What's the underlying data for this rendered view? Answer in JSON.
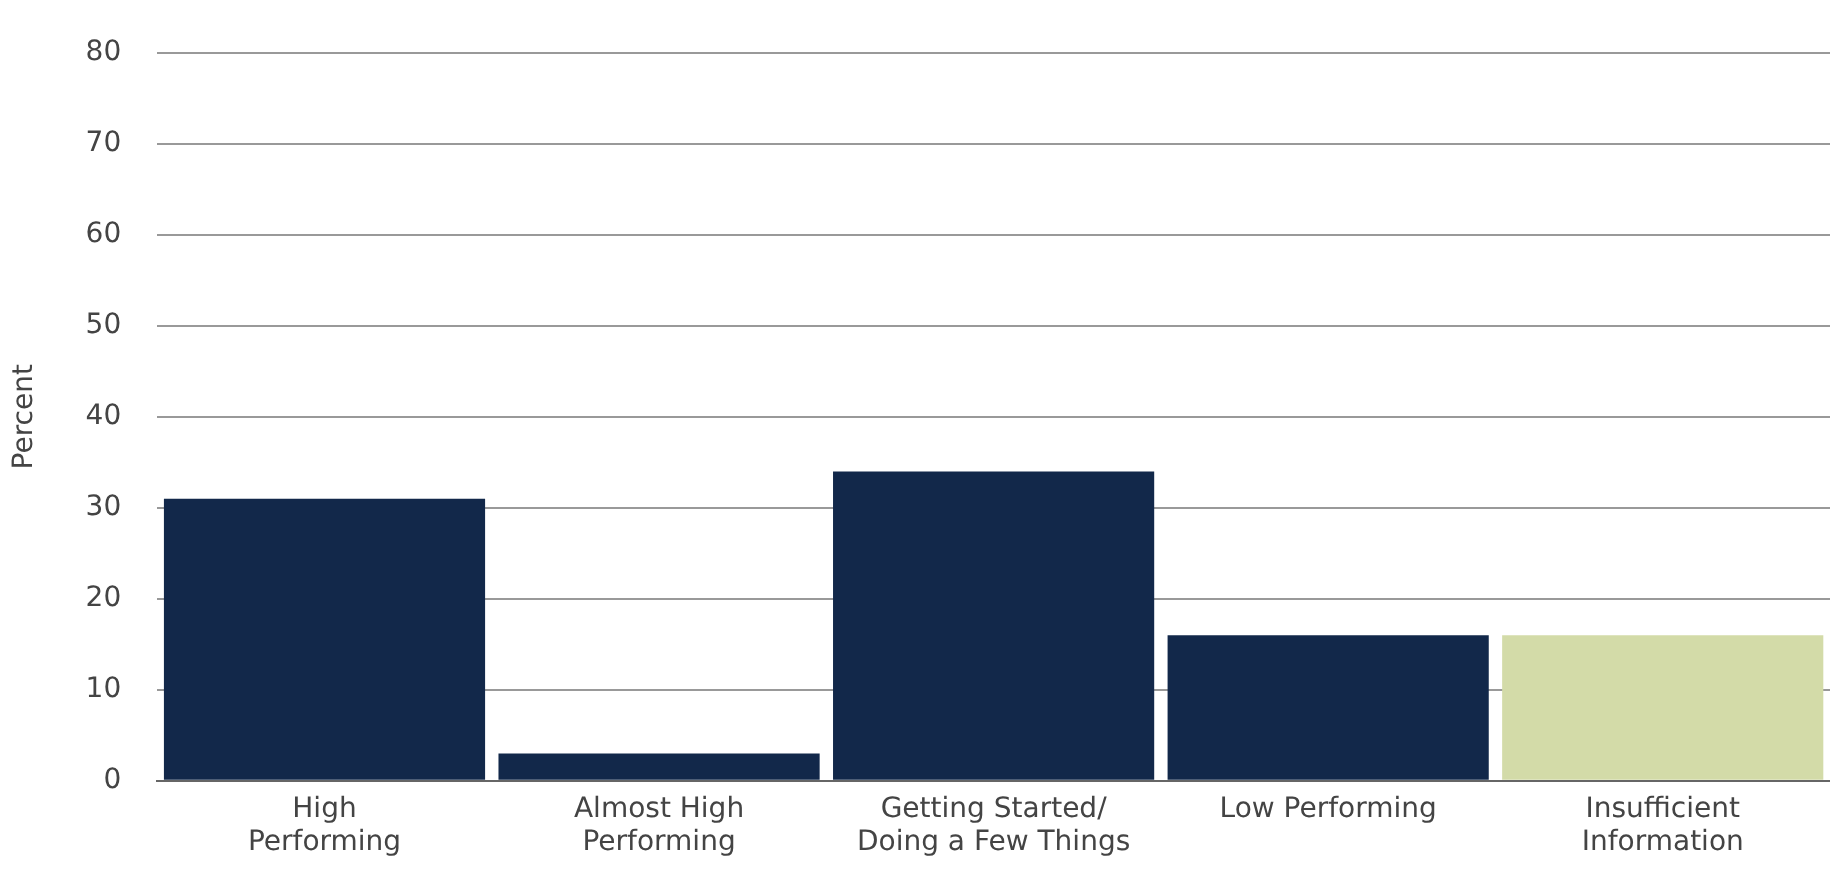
{
  "chart_data": {
    "type": "bar",
    "ylabel": "Percent",
    "categories": [
      "High\nPerforming",
      "Almost High\nPerforming",
      "Getting Started/\nDoing a Few Things",
      "Low Performing",
      "Insufficient\nInformation"
    ],
    "values": [
      31,
      3,
      34,
      16,
      16
    ],
    "colors": [
      "#12284a",
      "#12284a",
      "#12284a",
      "#12284a",
      "#d3dba8"
    ],
    "ylim": [
      0,
      80
    ],
    "yticks": [
      0,
      10,
      20,
      30,
      40,
      50,
      60,
      70,
      80
    ],
    "grid": "y",
    "legend": false
  }
}
